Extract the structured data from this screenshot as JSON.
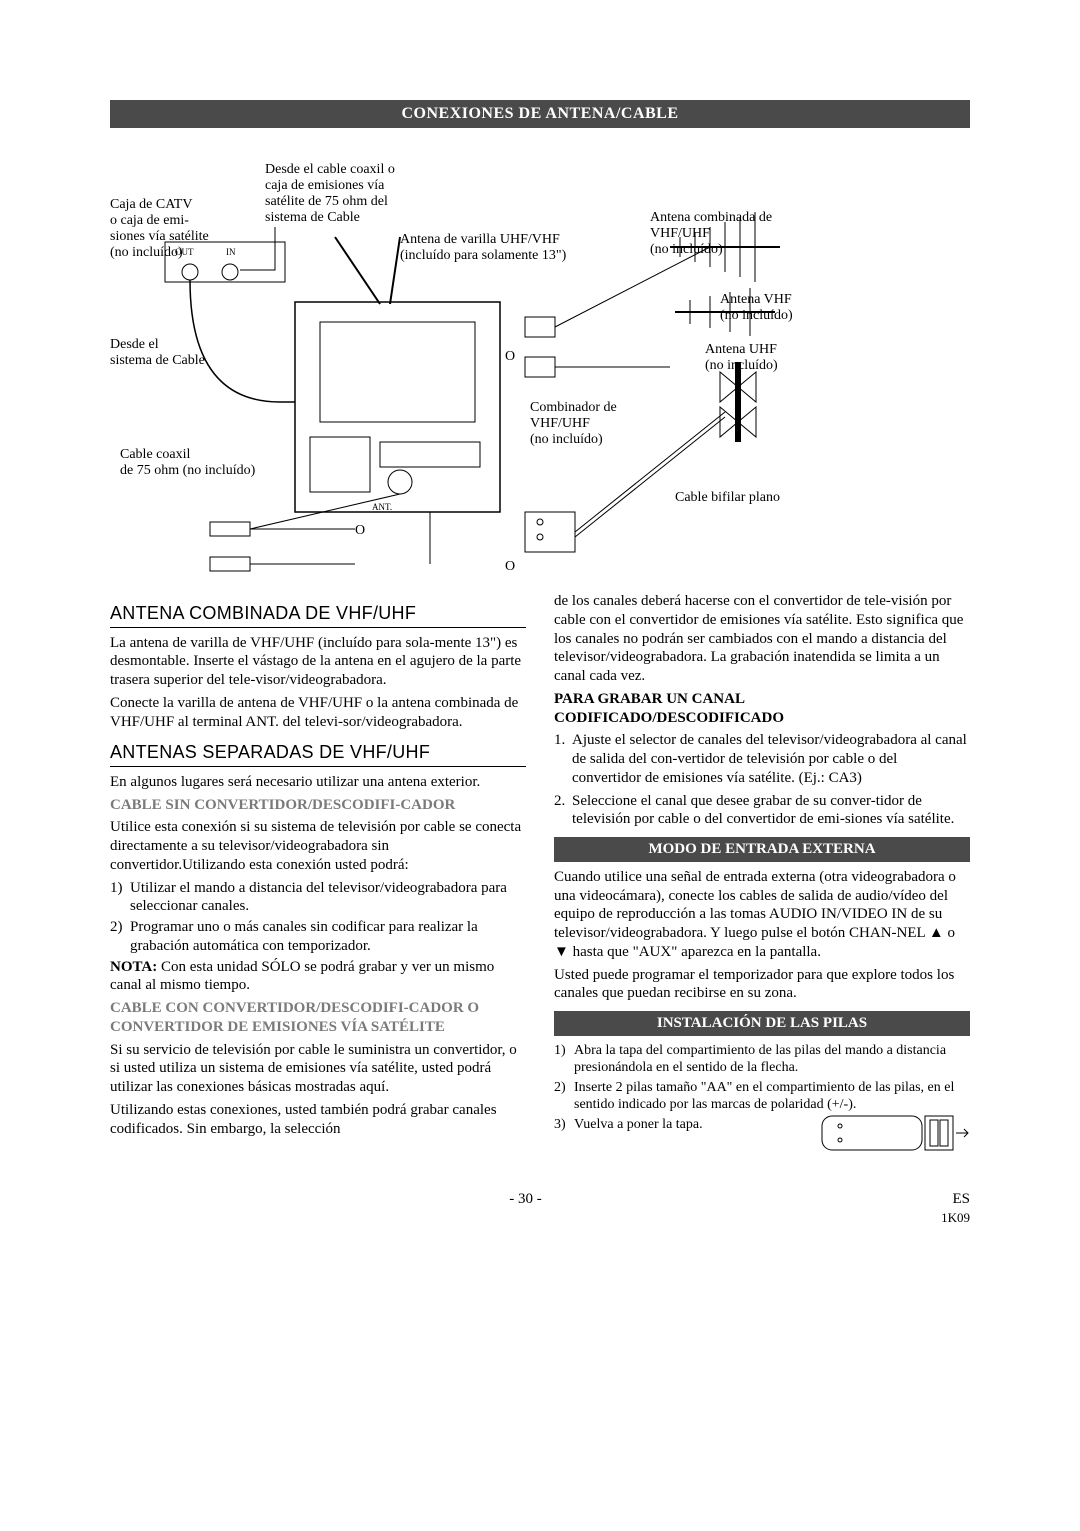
{
  "banner_main": "CONEXIONES DE ANTENA/CABLE",
  "diagram": {
    "catv_box": "Caja de CATV\no caja de emi-\nsiones vía satélite\n(no incluído)",
    "from_coax": "Desde el cable coaxil o\ncaja de emisiones vía\nsatélite de 75 ohm del\nsistema de Cable",
    "rod_ant": "Antena de varilla UHF/VHF\n(incluído para solamente 13\")",
    "from_cable": "Desde el\nsistema de Cable",
    "coax75": "Cable coaxil\nde 75 ohm (no incluído)",
    "combiner": "Combinador de\nVHF/UHF\n(no incluído)",
    "combo_ant": "Antena combinada de\nVHF/UHF\n(no incluído)",
    "vhf_ant": "Antena VHF\n(no incluído)",
    "uhf_ant": "Antena UHF\n(no incluído)",
    "flat_cable": "Cable bifilar plano",
    "out": "OUT",
    "in": "IN",
    "ant": "ANT.",
    "o": "O"
  },
  "h_combined": "ANTENA COMBINADA DE VHF/UHF",
  "p_combined_1": "La antena de varilla de VHF/UHF (incluído para sola-mente 13\") es desmontable. Inserte el vástago de la antena en el agujero de la parte trasera superior del tele-visor/videograbadora.",
  "p_combined_2": "Conecte la varilla de antena de VHF/UHF o la antena combinada de VHF/UHF al terminal ANT. del televi-sor/videograbadora.",
  "h_separate": "ANTENAS SEPARADAS DE VHF/UHF",
  "p_separate_1": "En algunos lugares será necesario utilizar una antena exterior.",
  "gray_no_conv": "CABLE SIN CONVERTIDOR/DESCODIFI-CADOR",
  "p_noconv_1": "Utilice esta conexión si su sistema de televisión por cable se conecta directamente a su televisor/videograbadora sin convertidor.Utilizando esta conexión usted podrá:",
  "noconv_list": [
    "Utilizar el mando a distancia del televisor/videograbadora para seleccionar canales.",
    "Programar uno o más canales sin codificar para realizar la grabación automática con temporizador."
  ],
  "nota_label": "NOTA:",
  "nota_text": " Con esta unidad SÓLO se podrá grabar y ver un mismo canal al mismo tiempo.",
  "gray_with_conv": "CABLE CON CONVERTIDOR/DESCODIFI-CADOR O CONVERTIDOR DE EMISIONES VÍA SATÉLITE",
  "p_withconv_1": "Si su servicio de televisión por cable le suministra un convertidor, o si usted utiliza un sistema de emisiones vía satélite, usted podrá utilizar las conexiones básicas mostradas aquí.",
  "p_withconv_2": "Utilizando estas conexiones, usted también podrá grabar canales codificados. Sin embargo, la selección",
  "p_right_cont": "de los canales deberá hacerse con el convertidor de tele-visión por cable con el convertidor de emisiones vía satélite. Esto significa que los canales no podrán ser cambiados con el mando a distancia del televisor/videograbadora. La grabación inatendida se limita a un canal cada vez.",
  "rec_head": "PARA GRABAR UN CANAL CODIFICADO/DESCODIFICADO",
  "rec_steps": [
    "Ajuste el selector de canales del televisor/videograbadora al canal de salida del con-vertidor de televisión por cable o del convertidor de emisiones vía satélite. (Ej.: CA3)",
    "Seleccione el canal que desee grabar de su conver-tidor de televisión por cable o del convertidor de emi-siones vía satélite."
  ],
  "banner_ext": "MODO DE ENTRADA EXTERNA",
  "p_ext_1": "Cuando utilice una señal de entrada externa (otra videograbadora o una videocámara), conecte los cables de salida de audio/vídeo del equipo de reproducción a las tomas AUDIO IN/VIDEO IN de su televisor/videograbadora. Y luego pulse el botón CHAN-NEL ▲ o ▼ hasta que \"AUX\" aparezca en la pantalla.",
  "p_ext_2": "Usted puede programar el temporizador para que explore todos los canales que puedan recibirse en su zona.",
  "banner_bat": "INSTALACIÓN DE LAS PILAS",
  "bat_steps": [
    "Abra la tapa del compartimiento de las pilas del mando a distancia presionándola en el sentido de la flecha.",
    "Inserte 2 pilas tamaño \"AA\" en el compartimiento de las pilas, en el sentido indicado por las marcas de polaridad (+/-).",
    "Vuelva a poner la tapa."
  ],
  "footer_page": "- 30 -",
  "footer_lang": "ES",
  "footer_code": "1K09"
}
